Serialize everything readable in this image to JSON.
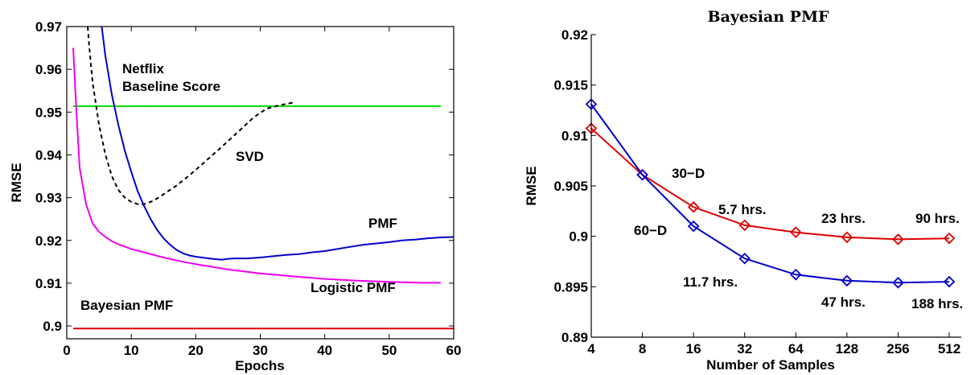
{
  "chart_data": [
    {
      "type": "line",
      "title": "",
      "xlabel": "Epochs",
      "ylabel": "RMSE",
      "xlim": [
        0,
        60
      ],
      "ylim": [
        0.897,
        0.97
      ],
      "xticks": [
        "0",
        "10",
        "20",
        "30",
        "40",
        "50",
        "60"
      ],
      "yticks": [
        "0.9",
        "0.91",
        "0.92",
        "0.93",
        "0.94",
        "0.95",
        "0.96",
        "0.97"
      ],
      "grid": false,
      "series": [
        {
          "name": "Netflix Baseline Score",
          "color": "#00e000",
          "style": "solid",
          "x": [
            1,
            58
          ],
          "y": [
            0.9514,
            0.9514
          ]
        },
        {
          "name": "Bayesian PMF",
          "color": "#e00000",
          "style": "solid",
          "x": [
            1,
            60
          ],
          "y": [
            0.8994,
            0.8994
          ]
        },
        {
          "name": "SVD",
          "color": "#000000",
          "style": "dashed",
          "x": [
            3,
            3.5,
            4,
            5,
            6,
            7,
            8,
            9,
            10,
            11,
            12,
            13,
            14,
            15,
            17,
            19,
            21,
            23,
            25,
            27,
            29,
            31,
            33,
            35
          ],
          "y": [
            0.975,
            0.965,
            0.957,
            0.947,
            0.94,
            0.935,
            0.9318,
            0.93,
            0.929,
            0.9285,
            0.9285,
            0.929,
            0.9298,
            0.9308,
            0.9328,
            0.9352,
            0.9378,
            0.9405,
            0.9432,
            0.946,
            0.9488,
            0.9508,
            0.9516,
            0.9522
          ]
        },
        {
          "name": "PMF",
          "color": "#0000cc",
          "style": "solid",
          "x": [
            5,
            6,
            7,
            8,
            9,
            10,
            11,
            12,
            13,
            14,
            15,
            16,
            17,
            18,
            19,
            20,
            22,
            24,
            25,
            26,
            28,
            30,
            32,
            34,
            36,
            38,
            40,
            42,
            44,
            46,
            48,
            50,
            52,
            54,
            56,
            58,
            60
          ],
          "y": [
            0.975,
            0.963,
            0.954,
            0.947,
            0.941,
            0.936,
            0.9315,
            0.928,
            0.925,
            0.9225,
            0.9205,
            0.919,
            0.9178,
            0.917,
            0.9165,
            0.9162,
            0.9158,
            0.9155,
            0.9157,
            0.9158,
            0.9158,
            0.916,
            0.9163,
            0.9166,
            0.9168,
            0.9172,
            0.9175,
            0.918,
            0.9185,
            0.919,
            0.9193,
            0.9196,
            0.92,
            0.9202,
            0.9205,
            0.9207,
            0.9208
          ]
        },
        {
          "name": "Logistic PMF",
          "color": "#ee00ee",
          "style": "solid",
          "x": [
            1,
            1.5,
            2,
            3,
            4,
            5,
            6,
            7,
            8,
            10,
            12,
            15,
            18,
            21,
            25,
            30,
            35,
            40,
            45,
            50,
            55,
            58
          ],
          "y": [
            0.965,
            0.95,
            0.937,
            0.9285,
            0.924,
            0.922,
            0.9208,
            0.9198,
            0.9191,
            0.918,
            0.9172,
            0.916,
            0.915,
            0.9142,
            0.9132,
            0.9123,
            0.9116,
            0.911,
            0.9106,
            0.9103,
            0.9101,
            0.9101
          ]
        }
      ],
      "annotations": [
        "Netflix",
        "Baseline Score",
        "SVD",
        "PMF",
        "Logistic PMF",
        "Bayesian PMF"
      ]
    },
    {
      "type": "line",
      "title": "Bayesian PMF",
      "xlabel": "Number of Samples",
      "ylabel": "RMSE",
      "x_scale": "log2",
      "x": [
        4,
        8,
        16,
        32,
        64,
        128,
        256,
        512
      ],
      "xticks": [
        "4",
        "8",
        "16",
        "32",
        "64",
        "128",
        "256",
        "512"
      ],
      "ylim": [
        0.89,
        0.92
      ],
      "yticks": [
        "0.89",
        "0.895",
        "0.9",
        "0.905",
        "0.91",
        "0.915",
        "0.92"
      ],
      "grid": false,
      "series": [
        {
          "name": "30-D",
          "color": "#e00000",
          "marker": "diamond",
          "values": [
            0.9107,
            0.9061,
            0.9029,
            0.9011,
            0.9004,
            0.8999,
            0.8997,
            0.8998
          ]
        },
        {
          "name": "60-D",
          "color": "#0000cc",
          "marker": "diamond",
          "values": [
            0.9131,
            0.9061,
            0.901,
            0.8978,
            0.8962,
            0.8956,
            0.8954,
            0.8955
          ]
        }
      ],
      "annotations": [
        "30−D",
        "60−D",
        "5.7 hrs.",
        "23 hrs.",
        "90 hrs.",
        "11.7 hrs.",
        "47 hrs.",
        "188 hrs."
      ]
    }
  ],
  "labels": {
    "left": {
      "netflix1": "Netflix",
      "netflix2": "Baseline Score",
      "svd": "SVD",
      "pmf": "PMF",
      "logistic": "Logistic PMF",
      "bayesian": "Bayesian PMF"
    },
    "right": {
      "d30": "30−D",
      "d60": "60−D",
      "t1": "5.7 hrs.",
      "t2": "23 hrs.",
      "t3": "90 hrs.",
      "t4": "11.7 hrs.",
      "t5": "47 hrs.",
      "t6": "188 hrs."
    }
  }
}
